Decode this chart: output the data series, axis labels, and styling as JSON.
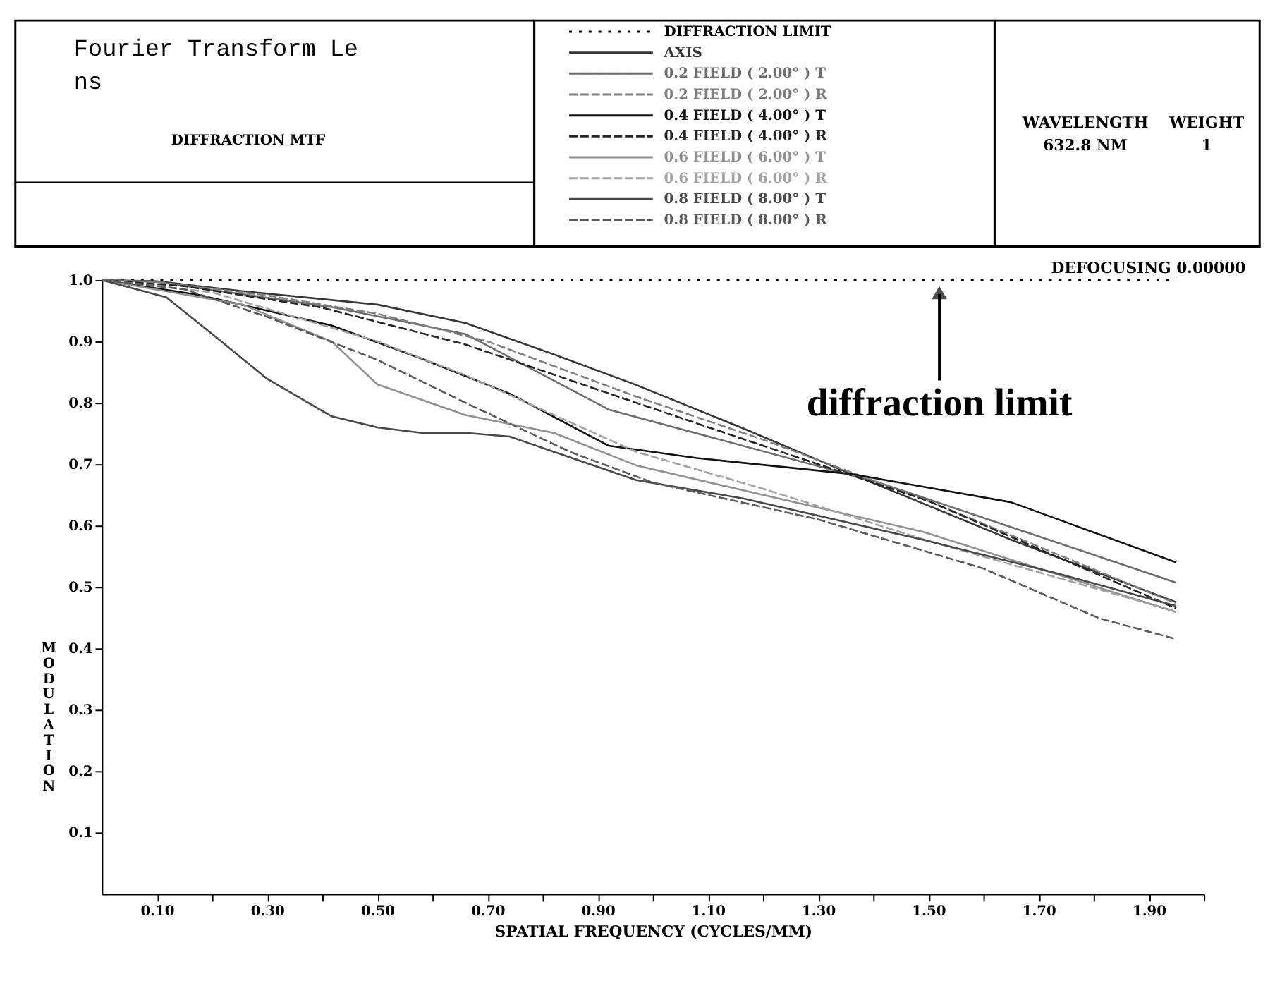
{
  "chart_data": {
    "type": "line",
    "title": "Fourier Transform Lens",
    "subtitle": "DIFFRACTION MTF",
    "xlabel": "SPATIAL FREQUENCY (CYCLES/MM)",
    "ylabel": "MODULATION",
    "xlim": [
      0,
      2.0
    ],
    "ylim": [
      0,
      1.0
    ],
    "xticks": [
      {
        "value": 0.1,
        "label": "0.10"
      },
      {
        "value": 0.2,
        "label": null
      },
      {
        "value": 0.3,
        "label": "0.30"
      },
      {
        "value": 0.4,
        "label": null
      },
      {
        "value": 0.5,
        "label": "0.50"
      },
      {
        "value": 0.6,
        "label": null
      },
      {
        "value": 0.7,
        "label": "0.70"
      },
      {
        "value": 0.8,
        "label": null
      },
      {
        "value": 0.9,
        "label": "0.90"
      },
      {
        "value": 1.0,
        "label": null
      },
      {
        "value": 1.1,
        "label": "1.10"
      },
      {
        "value": 1.2,
        "label": null
      },
      {
        "value": 1.3,
        "label": "1.30"
      },
      {
        "value": 1.4,
        "label": null
      },
      {
        "value": 1.5,
        "label": "1.50"
      },
      {
        "value": 1.6,
        "label": null
      },
      {
        "value": 1.7,
        "label": "1.70"
      },
      {
        "value": 1.8,
        "label": null
      },
      {
        "value": 1.9,
        "label": "1.90"
      },
      {
        "value": 2.0,
        "label": null
      }
    ],
    "yticks": [
      {
        "value": 0.1,
        "label": "0.1"
      },
      {
        "value": 0.2,
        "label": "0.2"
      },
      {
        "value": 0.3,
        "label": "0.3"
      },
      {
        "value": 0.4,
        "label": "0.4"
      },
      {
        "value": 0.5,
        "label": "0.5"
      },
      {
        "value": 0.6,
        "label": "0.6"
      },
      {
        "value": 0.7,
        "label": "0.7"
      },
      {
        "value": 0.8,
        "label": "0.8"
      },
      {
        "value": 0.9,
        "label": "0.9"
      },
      {
        "value": 1.0,
        "label": "1.0"
      }
    ],
    "grid": false,
    "legend": "top",
    "marker": "none",
    "series": [
      {
        "name": "DIFFRACTION LIMIT",
        "color": "#000000",
        "line_style": "dotted",
        "x": [
          0,
          1.95
        ],
        "values": [
          1.0,
          1.0
        ]
      },
      {
        "name": "AXIS",
        "color": "#363636",
        "line_style": "solid",
        "x": [
          0,
          0.1,
          0.255,
          0.5,
          0.66,
          0.82,
          0.97,
          1.165,
          1.36,
          1.65,
          1.95
        ],
        "values": [
          1.0,
          0.998,
          0.982,
          0.96,
          0.93,
          0.879,
          0.829,
          0.758,
          0.684,
          0.577,
          0.475
        ]
      },
      {
        "name": "0.2 FIELD ( 2.00° ) T",
        "color": "#6c6c6c",
        "line_style": "solid",
        "x": [
          0,
          0.1,
          0.417,
          0.66,
          0.92,
          1.41,
          1.95
        ],
        "values": [
          1.0,
          0.997,
          0.956,
          0.912,
          0.789,
          0.67,
          0.507
        ]
      },
      {
        "name": "0.2 FIELD ( 2.00° ) R",
        "color": "#7e7e7e",
        "line_style": "dashed",
        "x": [
          0,
          0.1,
          0.3,
          0.5,
          0.7,
          0.97,
          1.2,
          1.5,
          1.95
        ],
        "values": [
          1.0,
          0.997,
          0.975,
          0.945,
          0.9,
          0.81,
          0.74,
          0.64,
          0.473
        ]
      },
      {
        "name": "0.4 FIELD ( 4.00° ) T",
        "color": "#121212",
        "line_style": "solid",
        "x": [
          0,
          0.175,
          0.417,
          0.58,
          0.74,
          0.92,
          1.08,
          1.36,
          1.65,
          1.95
        ],
        "values": [
          1.0,
          0.976,
          0.926,
          0.872,
          0.815,
          0.73,
          0.71,
          0.684,
          0.638,
          0.54
        ]
      },
      {
        "name": "0.4 FIELD ( 4.00° ) R",
        "color": "#242424",
        "line_style": "dashed",
        "x": [
          0,
          0.15,
          0.4,
          0.66,
          0.97,
          1.2,
          1.5,
          1.95
        ],
        "values": [
          1.0,
          0.99,
          0.955,
          0.895,
          0.8,
          0.73,
          0.64,
          0.465
        ]
      },
      {
        "name": "0.6 FIELD ( 6.00° ) T",
        "color": "#909090",
        "line_style": "solid",
        "x": [
          0,
          0.255,
          0.417,
          0.5,
          0.66,
          0.82,
          0.97,
          1.2,
          1.49,
          1.95
        ],
        "values": [
          1.0,
          0.96,
          0.9,
          0.83,
          0.78,
          0.751,
          0.698,
          0.65,
          0.59,
          0.459
        ]
      },
      {
        "name": "0.6 FIELD ( 6.00° ) R",
        "color": "#a2a2a2",
        "line_style": "dashed",
        "x": [
          0,
          0.2,
          0.5,
          0.66,
          0.97,
          1.2,
          1.5,
          1.95
        ],
        "values": [
          1.0,
          0.98,
          0.9,
          0.845,
          0.72,
          0.66,
          0.575,
          0.46
        ]
      },
      {
        "name": "0.8 FIELD ( 8.00° ) T",
        "color": "#484848",
        "line_style": "solid",
        "x": [
          0,
          0.117,
          0.214,
          0.3,
          0.417,
          0.5,
          0.58,
          0.66,
          0.74,
          0.97,
          1.165,
          1.49,
          1.73,
          1.95
        ],
        "values": [
          1.0,
          0.972,
          0.902,
          0.839,
          0.778,
          0.76,
          0.751,
          0.751,
          0.745,
          0.674,
          0.644,
          0.577,
          0.523,
          0.469
        ]
      },
      {
        "name": "0.8 FIELD ( 8.00° ) R",
        "color": "#5a5a5a",
        "line_style": "dashed",
        "x": [
          0,
          0.15,
          0.3,
          0.5,
          0.66,
          0.85,
          1.0,
          1.3,
          1.6,
          1.81,
          1.95
        ],
        "values": [
          1.0,
          0.985,
          0.94,
          0.87,
          0.8,
          0.72,
          0.67,
          0.61,
          0.53,
          0.449,
          0.415
        ]
      }
    ],
    "annotations": [
      {
        "text": "diffraction limit",
        "x": 1.52,
        "y": 1.0
      },
      "DEFOCUSING 0.00000",
      "WAVELENGTH",
      "WEIGHT",
      "632.8 NM",
      "1"
    ]
  }
}
